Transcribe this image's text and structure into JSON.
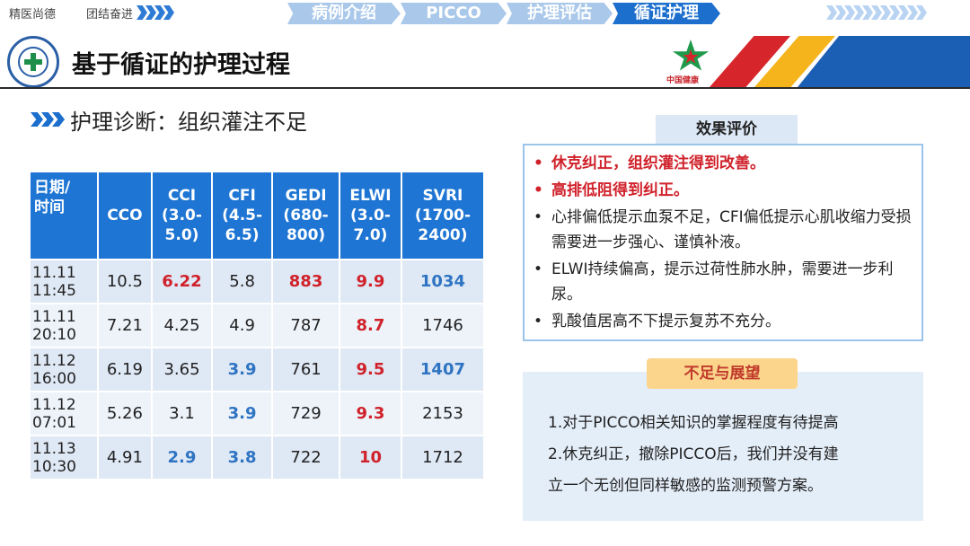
{
  "top_strip": {
    "motto_left": "精医尚德",
    "motto_right": "团结奋进",
    "nav_tabs": [
      "病例介绍",
      "PICCO",
      "护理评估",
      "循证护理"
    ],
    "active_tab": "循证护理"
  },
  "header": {
    "title": "基于循证的护理过程",
    "brand_text": "中国健康"
  },
  "section": {
    "diagnosis": "护理诊断：组织灌注不足"
  },
  "table": {
    "headers": [
      {
        "lines": [
          "日期/",
          "时间"
        ]
      },
      {
        "lines": [
          "CCO"
        ]
      },
      {
        "lines": [
          "CCI",
          "(3.0-",
          "5.0)"
        ]
      },
      {
        "lines": [
          "CFI",
          "(4.5-",
          "6.5)"
        ]
      },
      {
        "lines": [
          "GEDI",
          "(680-",
          "800)"
        ]
      },
      {
        "lines": [
          "ELWI",
          "(3.0-",
          "7.0)"
        ]
      },
      {
        "lines": [
          "SVRI",
          "(1700-",
          "2400)"
        ]
      }
    ],
    "rows": [
      {
        "date": "11.11",
        "time": "11:45",
        "cells": [
          {
            "v": "10.5",
            "c": ""
          },
          {
            "v": "6.22",
            "c": "red"
          },
          {
            "v": "5.8",
            "c": ""
          },
          {
            "v": "883",
            "c": "red"
          },
          {
            "v": "9.9",
            "c": "red"
          },
          {
            "v": "1034",
            "c": "blue"
          }
        ]
      },
      {
        "date": "11.11",
        "time": "20:10",
        "cells": [
          {
            "v": "7.21",
            "c": ""
          },
          {
            "v": "4.25",
            "c": ""
          },
          {
            "v": "4.9",
            "c": ""
          },
          {
            "v": "787",
            "c": ""
          },
          {
            "v": "8.7",
            "c": "red"
          },
          {
            "v": "1746",
            "c": ""
          }
        ]
      },
      {
        "date": "11.12",
        "time": "16:00",
        "cells": [
          {
            "v": "6.19",
            "c": ""
          },
          {
            "v": "3.65",
            "c": ""
          },
          {
            "v": "3.9",
            "c": "blue"
          },
          {
            "v": "761",
            "c": ""
          },
          {
            "v": "9.5",
            "c": "red"
          },
          {
            "v": "1407",
            "c": "blue"
          }
        ]
      },
      {
        "date": "11.12",
        "time": "07:01",
        "cells": [
          {
            "v": "5.26",
            "c": ""
          },
          {
            "v": "3.1",
            "c": ""
          },
          {
            "v": "3.9",
            "c": "blue"
          },
          {
            "v": "729",
            "c": ""
          },
          {
            "v": "9.3",
            "c": "red"
          },
          {
            "v": "2153",
            "c": ""
          }
        ]
      },
      {
        "date": "11.13",
        "time": "10:30",
        "cells": [
          {
            "v": "4.91",
            "c": ""
          },
          {
            "v": "2.9",
            "c": "blue"
          },
          {
            "v": "3.8",
            "c": "blue"
          },
          {
            "v": "722",
            "c": ""
          },
          {
            "v": "10",
            "c": "red"
          },
          {
            "v": "1712",
            "c": ""
          }
        ]
      }
    ]
  },
  "evaluation": {
    "title": "效果评价",
    "items": [
      {
        "text": "休克纠正，组织灌注得到改善。",
        "highlight": true
      },
      {
        "text": "高排低阻得到纠正。",
        "highlight": true
      },
      {
        "text": "心排偏低提示血泵不足，CFI偏低提示心肌收缩力受损需要进一步强心、谨慎补液。",
        "highlight": false
      },
      {
        "text": "ELWI持续偏高，提示过荷性肺水肿，需要进一步利尿。",
        "highlight": false
      },
      {
        "text": "乳酸值居高不下提示复苏不充分。",
        "highlight": false
      }
    ],
    "bullet": "•"
  },
  "prospects": {
    "title": "不足与展望",
    "lines": [
      "1.对于PICCO相关知识的掌握程度有待提高",
      "2.休克纠正，撤除PICCO后，我们并没有建",
      "立一个无创但同样敏感的监测预警方案。"
    ]
  },
  "colors": {
    "accent_blue": "#1e75d3",
    "alert_red": "#d0222b",
    "low_blue": "#2e74c2"
  }
}
